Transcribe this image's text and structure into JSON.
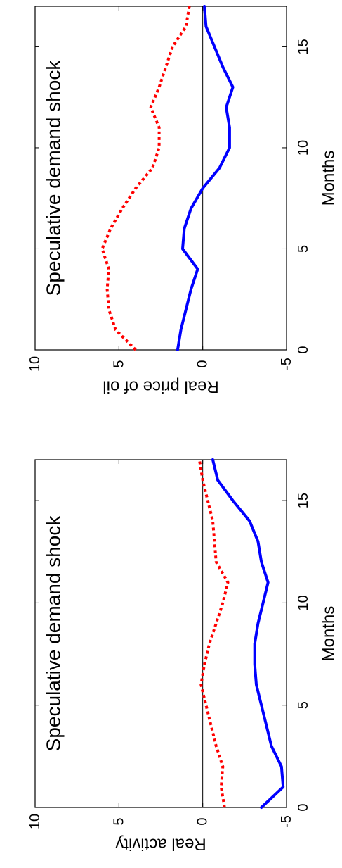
{
  "chart_data": [
    {
      "type": "line",
      "title": "Speculative demand shock",
      "xlabel": "Months",
      "ylabel": "Real activity",
      "xlim": [
        0,
        17
      ],
      "ylim": [
        -5,
        10
      ],
      "xticks": [
        "0",
        "5",
        "10",
        "15"
      ],
      "yticks": [
        "10",
        "5",
        "0",
        "-5"
      ],
      "zero_line": 0,
      "series": [
        {
          "style": "solid",
          "color": "#0000ff",
          "x": [
            0,
            1,
            2,
            3,
            4,
            5,
            6,
            7,
            8,
            9,
            10,
            11,
            12,
            13,
            14,
            15,
            16,
            17
          ],
          "values": [
            -3.5,
            -4.8,
            -4.7,
            -4.1,
            -3.8,
            -3.5,
            -3.2,
            -3.1,
            -3.1,
            -3.3,
            -3.6,
            -3.9,
            -3.5,
            -3.3,
            -2.8,
            -1.8,
            -0.9,
            -0.6
          ]
        },
        {
          "style": "dotted",
          "color": "#ff0000",
          "x": [
            0,
            1,
            2,
            3,
            4,
            5,
            6,
            7,
            8,
            9,
            10,
            11,
            12,
            13,
            14,
            15,
            16,
            17
          ],
          "values": [
            -1.3,
            -1.1,
            -1.2,
            -0.8,
            -0.5,
            -0.2,
            0.1,
            -0.1,
            -0.4,
            -0.8,
            -1.2,
            -1.5,
            -0.8,
            -0.7,
            -0.6,
            -0.3,
            0,
            0.2
          ]
        }
      ]
    },
    {
      "type": "line",
      "title": "Speculative demand shock",
      "xlabel": "Months",
      "ylabel": "Real price of oil",
      "xlim": [
        0,
        17
      ],
      "ylim": [
        -5,
        10
      ],
      "xticks": [
        "0",
        "5",
        "10",
        "15"
      ],
      "yticks": [
        "10",
        "5",
        "0",
        "-5"
      ],
      "zero_line": 0,
      "series": [
        {
          "style": "solid",
          "color": "#0000ff",
          "x": [
            0,
            1,
            2,
            3,
            4,
            5,
            6,
            7,
            8,
            9,
            10,
            11,
            12,
            13,
            14,
            15,
            16,
            17
          ],
          "values": [
            1.5,
            1.3,
            1.0,
            0.7,
            0.3,
            1.2,
            1.1,
            0.7,
            0.0,
            -1.0,
            -1.6,
            -1.6,
            -1.4,
            -1.8,
            -1.2,
            -0.7,
            -0.2,
            -0.1
          ]
        },
        {
          "style": "dotted",
          "color": "#ff0000",
          "x": [
            0,
            1,
            2,
            3,
            4,
            5,
            6,
            7,
            8,
            9,
            10,
            11,
            12,
            13,
            14,
            15,
            16,
            17
          ],
          "values": [
            4.0,
            5.2,
            5.6,
            5.7,
            5.6,
            6.0,
            5.5,
            4.8,
            4.0,
            3.0,
            2.6,
            2.6,
            3.1,
            2.6,
            2.2,
            1.8,
            1.0,
            0.8
          ]
        }
      ]
    }
  ]
}
